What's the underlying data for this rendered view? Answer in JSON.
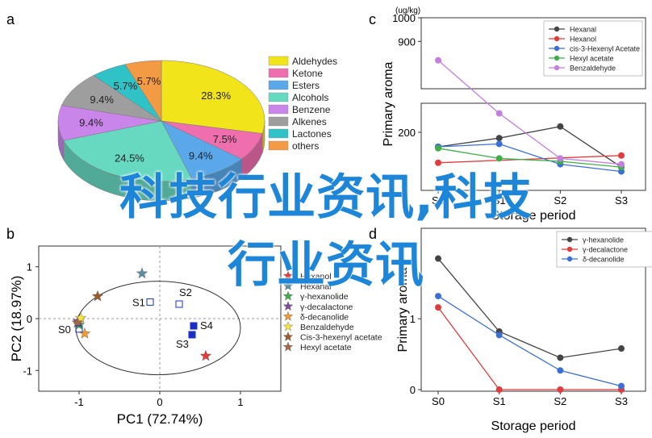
{
  "panel_labels": [
    "a",
    "b",
    "c",
    "d"
  ],
  "overlay": {
    "line1": "科技行业资讯,科技",
    "line2": "行业资讯"
  },
  "chart_data": [
    {
      "id": "a",
      "type": "pie",
      "labels": [
        "Aldehydes",
        "Ketone",
        "Esters",
        "Alcohols",
        "Benzene",
        "Alkenes",
        "Lactones",
        "others"
      ],
      "values": [
        28.3,
        7.5,
        9.4,
        24.5,
        9.4,
        9.4,
        5.7,
        5.7
      ],
      "value_labels": [
        "28.3%",
        "7.5%",
        "9.4%",
        "24.5%",
        "9.4%",
        "9.4%",
        "5.7%",
        "5.7%"
      ],
      "colors": [
        "#f2e41b",
        "#ef6fae",
        "#5aa8ea",
        "#68d9c1",
        "#c985ea",
        "#9e9e9e",
        "#2fc3c7",
        "#f39a45"
      ],
      "legend_position": "right"
    },
    {
      "id": "b",
      "type": "scatter",
      "xlabel": "PC1 (72.74%)",
      "ylabel": "PC2 (18.97%)",
      "xlim": [
        -1.5,
        1.5
      ],
      "ylim": [
        -1.4,
        1.4
      ],
      "xticks": [
        -1,
        0,
        1
      ],
      "yticks": [
        -1,
        0,
        1
      ],
      "compound_legend": [
        {
          "name": "Hexanol",
          "color": "#e23b3b"
        },
        {
          "name": "Hexanal",
          "color": "#5a8fa5"
        },
        {
          "name": "γ-hexanolide",
          "color": "#3fae49"
        },
        {
          "name": "γ-decalactone",
          "color": "#7f4b9e"
        },
        {
          "name": "δ-decanolide",
          "color": "#f29b2b"
        },
        {
          "name": "Benzaldehyde",
          "color": "#f5e342"
        },
        {
          "name": "Cis-3-hexenyl acetate",
          "color": "#9a5b2b"
        },
        {
          "name": "Hexyl acetate",
          "color": "#a36a45"
        }
      ],
      "compound_points": [
        {
          "name": "Hexanol",
          "x": 0.57,
          "y": -0.72
        },
        {
          "name": "Hexanal",
          "x": -0.22,
          "y": 0.87
        },
        {
          "name": "γ-hexanolide",
          "x": -1.0,
          "y": -0.12
        },
        {
          "name": "γ-decalactone",
          "x": -1.01,
          "y": -0.05
        },
        {
          "name": "δ-decanolide",
          "x": -0.93,
          "y": -0.29
        },
        {
          "name": "Benzaldehyde",
          "x": -0.98,
          "y": 0.01
        },
        {
          "name": "Cis-3-hexenyl acetate",
          "x": -0.77,
          "y": 0.43
        },
        {
          "name": "Hexyl acetate",
          "x": -1.02,
          "y": -0.08
        }
      ],
      "samples": [
        {
          "label": "S0",
          "x": -1.0,
          "y": -0.2
        },
        {
          "label": "S1",
          "x": -0.12,
          "y": 0.32
        },
        {
          "label": "S2",
          "x": 0.24,
          "y": 0.28
        },
        {
          "label": "S3",
          "x": 0.4,
          "y": -0.31
        },
        {
          "label": "S4",
          "x": 0.42,
          "y": -0.14
        }
      ]
    },
    {
      "id": "c",
      "type": "line",
      "unit": "(ug/kg)",
      "xlabel": "Storage period",
      "ylabel": "Primary aroma",
      "categories": [
        "S0",
        "S1",
        "S2",
        "S3"
      ],
      "ytick_labels": [
        "200",
        "900",
        "1000"
      ],
      "axis_break": true,
      "series": [
        {
          "name": "Hexanal",
          "color": "#444444",
          "values": [
            150,
            180,
            220,
            80
          ]
        },
        {
          "name": "Hexanol",
          "color": "#e23b3b",
          "values": [
            95,
            null,
            null,
            120
          ]
        },
        {
          "name": "cis-3-Hexenyl Acetate",
          "color": "#3b6fd6",
          "values": [
            150,
            160,
            90,
            65
          ]
        },
        {
          "name": "Hexyl acetate",
          "color": "#3fae49",
          "values": [
            145,
            110,
            100,
            80
          ]
        },
        {
          "name": "Benzaldehyde",
          "color": "#c37ee0",
          "values": [
            820,
            265,
            110,
            90
          ]
        }
      ],
      "legend_position": "top-right"
    },
    {
      "id": "d",
      "type": "line",
      "xlabel": "Storage period",
      "ylabel": "Primary aroma",
      "categories": [
        "S0",
        "S1",
        "S2",
        "S3"
      ],
      "ylim": [
        0,
        2.3
      ],
      "yticks": [
        0,
        1
      ],
      "series": [
        {
          "name": "γ-hexanolide",
          "color": "#444444",
          "values": [
            1.85,
            0.82,
            0.45,
            0.58
          ]
        },
        {
          "name": "γ-decalactone",
          "color": "#e23b3b",
          "values": [
            1.16,
            0.0,
            0.0,
            0.0
          ]
        },
        {
          "name": "δ-decanolide",
          "color": "#3b6fd6",
          "values": [
            1.32,
            0.77,
            0.27,
            0.05
          ]
        }
      ],
      "legend_position": "top-right"
    }
  ]
}
